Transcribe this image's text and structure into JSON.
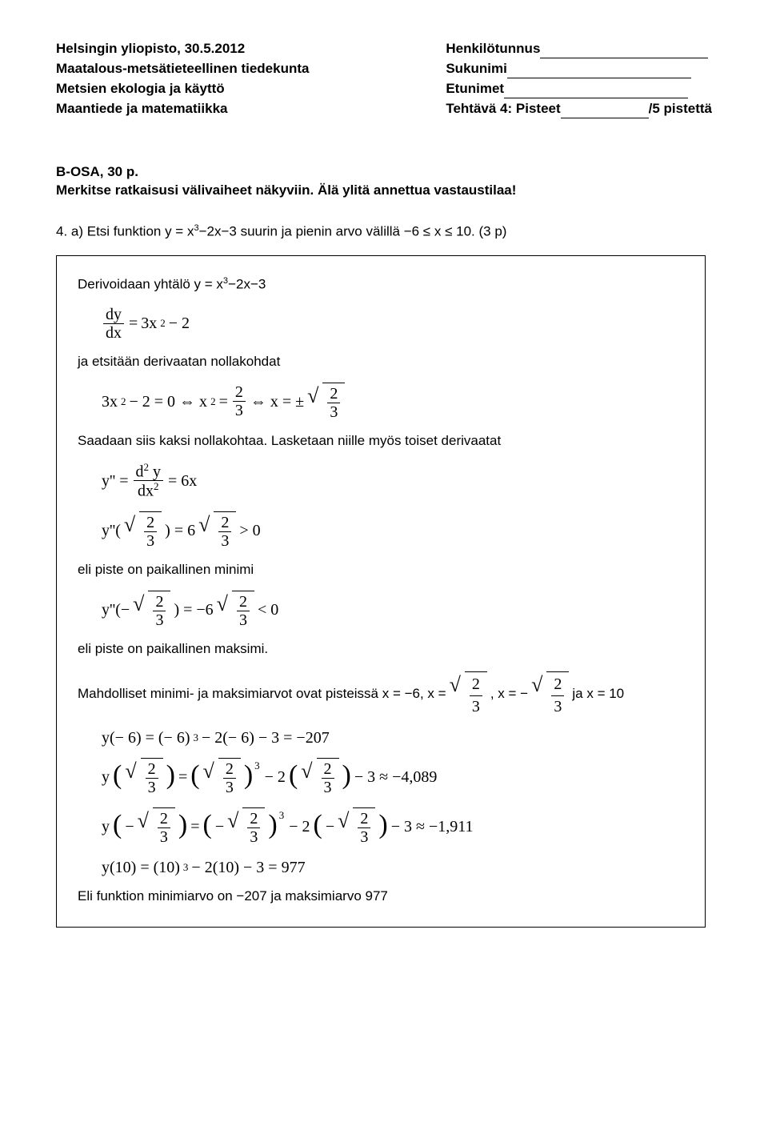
{
  "header": {
    "left": {
      "l1": "Helsingin yliopisto, 30.5.2012",
      "l2": "Maatalous-metsätieteellinen tiedekunta",
      "l3": "Metsien ekologia ja käyttö",
      "l4": "Maantiede ja matematiikka"
    },
    "right": {
      "r1": "Henkilötunnus",
      "r2": "Sukunimi",
      "r3": "Etunimet",
      "r4a": "Tehtävä 4: Pisteet",
      "r4b": "/5 pistettä"
    }
  },
  "section": {
    "title": "B-OSA, 30 p.",
    "instr": "Merkitse ratkaisusi välivaiheet näkyviin. Älä ylitä annettua vastaustilaa!"
  },
  "task": {
    "num": "4. a) ",
    "text_before": "Etsi funktion y = x",
    "exp3a": "3",
    "text_mid": "−2x−3 suurin ja pienin arvo välillä −6 ≤ x ≤ 10. (3 p)"
  },
  "box": {
    "l1a": "Derivoidaan yhtälö y = x",
    "l1exp": "3",
    "l1b": "−2x−3",
    "frac1_num": "dy",
    "frac1_den": "dx",
    "eq1_rhs_a": "3x",
    "eq1_rhs_exp": "2",
    "eq1_rhs_b": " − 2",
    "l2": "ja etsitään derivaatan nollakohdat",
    "eq2_a": "3x",
    "eq2_exp1": "2",
    "eq2_b": " − 2 = 0 ⇔ x",
    "eq2_exp2": "2",
    "eq2_c": " = ",
    "frac_23_num": "2",
    "frac_23_den": "3",
    "eq2_d": " ⇔ x = ±",
    "l3": "Saadaan siis kaksi nollakohtaa. Lasketaan niille myös toiset derivaatat",
    "ypp": "y'' = ",
    "frac2_num": "d",
    "frac2_num_exp": "2",
    "frac2_num_y": " y",
    "frac2_den": "dx",
    "frac2_den_exp": "2",
    "eq3_rhs": " = 6x",
    "eq4_a": "y''(",
    "eq4_b": ") = 6",
    "eq4_c": " > 0",
    "l4": "eli piste on paikallinen minimi",
    "eq5_a": "y''(−",
    "eq5_b": ") = −6",
    "eq5_c": " < 0",
    "l5": "eli piste on paikallinen maksimi.",
    "l6a": "Mahdolliset minimi- ja maksimiarvot ovat pisteissä x = −6, x = ",
    "l6b": ", x = − ",
    "l6c": " ja x = 10",
    "eq6": "y(− 6) = (− 6)",
    "eq6_exp": "3",
    "eq6_b": " − 2(− 6) − 3 = −207",
    "eq7_a": "y",
    "eq7_mid": " = ",
    "eq7_mid2": " − 2",
    "eq7_end": " − 3 ≈ −4,089",
    "eq7_exp": "3",
    "eq8_a": "y",
    "eq8_neg": "−",
    "eq8_mid": " = ",
    "eq8_mid2": " − 2",
    "eq8_end": " − 3 ≈ −1,911",
    "eq8_exp": "3",
    "eq9_a": "y(10) = (10)",
    "eq9_exp": "3",
    "eq9_b": " − 2(10) − 3 = 977",
    "l7": "Eli funktion minimiarvo on −207 ja maksimiarvo 977"
  }
}
